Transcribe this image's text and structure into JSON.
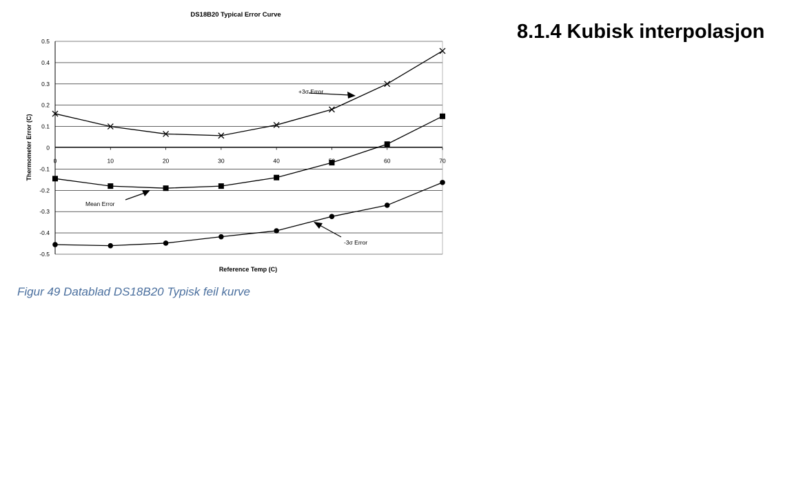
{
  "chart_data": {
    "type": "line",
    "title": "DS18B20 Typical Error Curve",
    "xlabel": "Reference Temp (C)",
    "ylabel": "Thermometer Error (C)",
    "x": [
      0,
      10,
      20,
      30,
      40,
      50,
      60,
      70
    ],
    "xlim": [
      0,
      70
    ],
    "ylim": [
      -0.5,
      0.5
    ],
    "x_ticks": [
      "0",
      "10",
      "20",
      "30",
      "40",
      "50",
      "60",
      "70"
    ],
    "y_ticks": [
      "0.5",
      "0.4",
      "0.3",
      "0.2",
      "0.1",
      "0",
      "-0.1",
      "-0.2",
      "-0.3",
      "-0.4",
      "-0.5"
    ],
    "y_tick_values": [
      0.5,
      0.4,
      0.3,
      0.2,
      0.1,
      0,
      -0.1,
      -0.2,
      -0.3,
      -0.4,
      -0.5
    ],
    "grid": true,
    "series": [
      {
        "name": "+3σ Error",
        "marker": "x",
        "values": [
          0.16,
          0.1,
          0.065,
          0.057,
          0.107,
          0.18,
          0.3,
          0.455
        ]
      },
      {
        "name": "Mean Error",
        "marker": "square",
        "values": [
          -0.145,
          -0.18,
          -0.19,
          -0.18,
          -0.14,
          -0.07,
          0.017,
          0.148
        ]
      },
      {
        "name": "-3σ Error",
        "marker": "circle",
        "values": [
          -0.455,
          -0.46,
          -0.448,
          -0.418,
          -0.39,
          -0.323,
          -0.27,
          -0.163
        ]
      }
    ],
    "annotations": [
      {
        "text": "+3σ Error",
        "series": 0
      },
      {
        "text": "Mean Error",
        "series": 1
      },
      {
        "text": "-3σ Error",
        "series": 2
      }
    ]
  },
  "caption": "Figur 49 Datablad DS18B20 Typisk feil kurve",
  "section_heading": "8.1.4 Kubisk interpolasjon",
  "colors": {
    "caption": "#4a6f9e",
    "ink": "#000000",
    "grid": "#000000"
  }
}
